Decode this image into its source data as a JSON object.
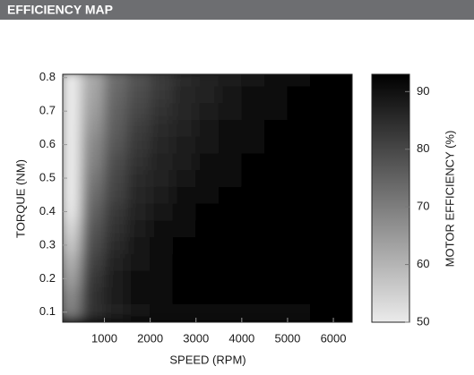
{
  "chart_data": {
    "type": "heatmap",
    "title": "EFFICIENCY MAP",
    "x_label": "SPEED (RPM)",
    "y_label": "TORQUE (NM)",
    "colorbar_label": "MOTOR EFFICIENCY (%)",
    "xlim": [
      90,
      6410
    ],
    "ylim": [
      0.07,
      0.81
    ],
    "clim": [
      50,
      93
    ],
    "xticks": [
      1000,
      2000,
      3000,
      4000,
      5000,
      6000
    ],
    "yticks": [
      0.1,
      0.2,
      0.3,
      0.4,
      0.5,
      0.6,
      0.7,
      0.8
    ],
    "cticks": [
      50,
      60,
      70,
      80,
      90
    ],
    "color_low": "#ebebeb",
    "color_high": "#000000",
    "x": [
      250,
      750,
      1250,
      1750,
      2250,
      2750,
      3250,
      3750,
      4250,
      4750,
      5250,
      5750,
      6250
    ],
    "y": [
      0.1,
      0.15,
      0.2,
      0.25,
      0.3,
      0.35,
      0.4,
      0.45,
      0.5,
      0.55,
      0.6,
      0.65,
      0.7,
      0.75,
      0.8
    ],
    "z": [
      [
        70,
        84,
        87,
        89,
        90,
        90,
        91,
        91,
        91,
        91,
        91,
        92,
        92
      ],
      [
        68,
        84,
        88,
        90,
        91,
        92,
        92,
        93,
        93,
        93,
        93,
        94,
        94
      ],
      [
        64,
        83,
        88,
        90,
        91,
        92,
        93,
        93,
        94,
        94,
        94,
        94,
        94
      ],
      [
        61,
        81,
        87,
        89,
        91,
        92,
        93,
        93,
        94,
        94,
        94,
        95,
        95
      ],
      [
        57,
        79,
        85,
        89,
        90,
        92,
        93,
        93,
        94,
        94,
        94,
        95,
        95
      ],
      [
        54,
        77,
        84,
        88,
        90,
        91,
        92,
        93,
        93,
        94,
        94,
        95,
        95
      ],
      [
        51,
        75,
        83,
        87,
        89,
        90,
        92,
        92,
        93,
        94,
        94,
        94,
        95
      ],
      [
        48,
        73,
        81,
        86,
        88,
        90,
        91,
        92,
        93,
        93,
        94,
        94,
        94
      ],
      [
        47,
        71,
        80,
        85,
        87,
        89,
        90,
        91,
        92,
        93,
        93,
        94,
        94
      ],
      [
        44,
        69,
        79,
        84,
        87,
        88,
        90,
        91,
        92,
        93,
        93,
        93,
        94
      ],
      [
        42,
        68,
        77,
        83,
        86,
        88,
        89,
        90,
        91,
        92,
        93,
        93,
        94
      ],
      [
        40,
        66,
        76,
        82,
        85,
        87,
        89,
        90,
        91,
        92,
        92,
        93,
        93
      ],
      [
        38,
        64,
        75,
        80,
        84,
        86,
        88,
        89,
        90,
        91,
        92,
        92,
        93
      ],
      [
        36,
        63,
        74,
        79,
        83,
        86,
        87,
        89,
        90,
        91,
        92,
        92,
        93
      ],
      [
        35,
        62,
        73,
        78,
        82,
        85,
        87,
        88,
        89,
        90,
        91,
        92,
        92
      ]
    ]
  }
}
